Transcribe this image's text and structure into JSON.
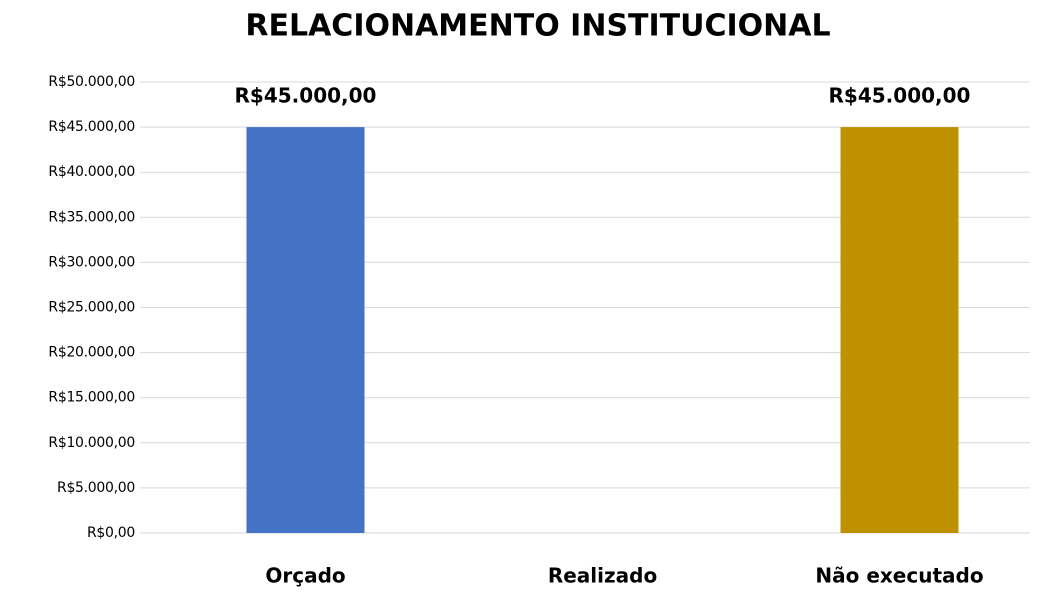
{
  "chart_data": {
    "type": "bar",
    "title": "RELACIONAMENTO INSTITUCIONAL",
    "categories": [
      "Orçado",
      "Realizado",
      "Não executado"
    ],
    "values": [
      45000,
      0,
      45000
    ],
    "value_labels": [
      "R$45.000,00",
      null,
      "R$45.000,00"
    ],
    "colors": [
      "#4472c4",
      null,
      "#bf9000"
    ],
    "ylim": [
      0,
      50000
    ],
    "yticks": [
      {
        "value": 0,
        "label": "R$0,00"
      },
      {
        "value": 5000,
        "label": "R$5.000,00"
      },
      {
        "value": 10000,
        "label": "R$10.000,00"
      },
      {
        "value": 15000,
        "label": "R$15.000,00"
      },
      {
        "value": 20000,
        "label": "R$20.000,00"
      },
      {
        "value": 25000,
        "label": "R$25.000,00"
      },
      {
        "value": 30000,
        "label": "R$30.000,00"
      },
      {
        "value": 35000,
        "label": "R$35.000,00"
      },
      {
        "value": 40000,
        "label": "R$40.000,00"
      },
      {
        "value": 45000,
        "label": "R$45.000,00"
      },
      {
        "value": 50000,
        "label": "R$50.000,00"
      }
    ],
    "grid": true
  }
}
